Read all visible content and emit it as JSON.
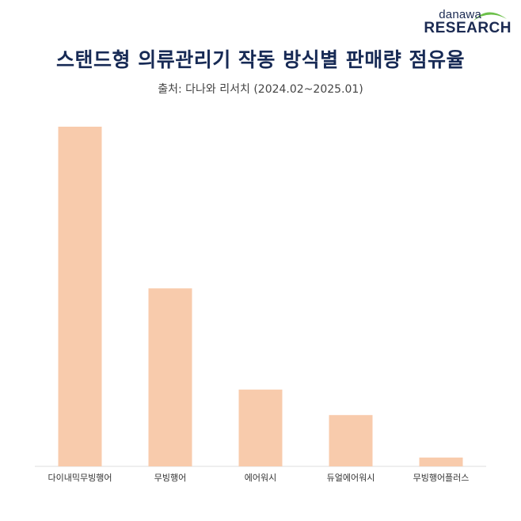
{
  "logo": {
    "top_text": "danawa",
    "bottom_text": "RESEARCH",
    "swoosh_color": "#6cc04a"
  },
  "header": {
    "title": "스탠드형 의류관리기 작동 방식별 판매량 점유율",
    "subtitle": "출처: 다나와 리서치 (2024.02~2025.01)"
  },
  "chart_data": {
    "type": "bar",
    "categories": [
      "다이내믹무빙행어",
      "무빙행어",
      "에어워시",
      "듀얼에어워시",
      "무빙행어플러스"
    ],
    "values": [
      100,
      52.4,
      22.6,
      15.1,
      2.6
    ],
    "ylim": [
      0,
      100
    ],
    "bar_color": "#f8cbac",
    "axis_color": "#dddddd",
    "grid": false,
    "legend": "none"
  }
}
